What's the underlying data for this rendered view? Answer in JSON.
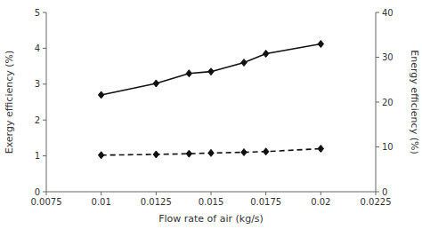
{
  "chart_data": {
    "type": "line",
    "x": [
      0.01,
      0.0125,
      0.014,
      0.015,
      0.0165,
      0.0175,
      0.02
    ],
    "series": [
      {
        "color": "#111111",
        "line_style": "solid",
        "marker": "diamond",
        "values": [
          2.7,
          3.02,
          3.3,
          3.35,
          3.6,
          3.85,
          4.12
        ]
      },
      {
        "color": "#111111",
        "line_style": "dashed",
        "marker": "diamond",
        "values": [
          1.02,
          1.04,
          1.06,
          1.08,
          1.1,
          1.12,
          1.2
        ]
      }
    ],
    "xlim": [
      0.0075,
      0.0225
    ],
    "xticks": [
      0.0075,
      0.01,
      0.0125,
      0.015,
      0.0175,
      0.02,
      0.0225
    ],
    "ylim": [
      0,
      5
    ],
    "yticks": [
      0,
      1,
      2,
      3,
      4,
      5
    ],
    "y2lim": [
      0,
      40
    ],
    "y2ticks": [
      0,
      10,
      20,
      30,
      40
    ],
    "x_label": "Flow rate of air (kg/s)",
    "y_label": "Exergy efficiency (%)",
    "y2_label": "Energy efficiency (%)",
    "grid": false
  }
}
